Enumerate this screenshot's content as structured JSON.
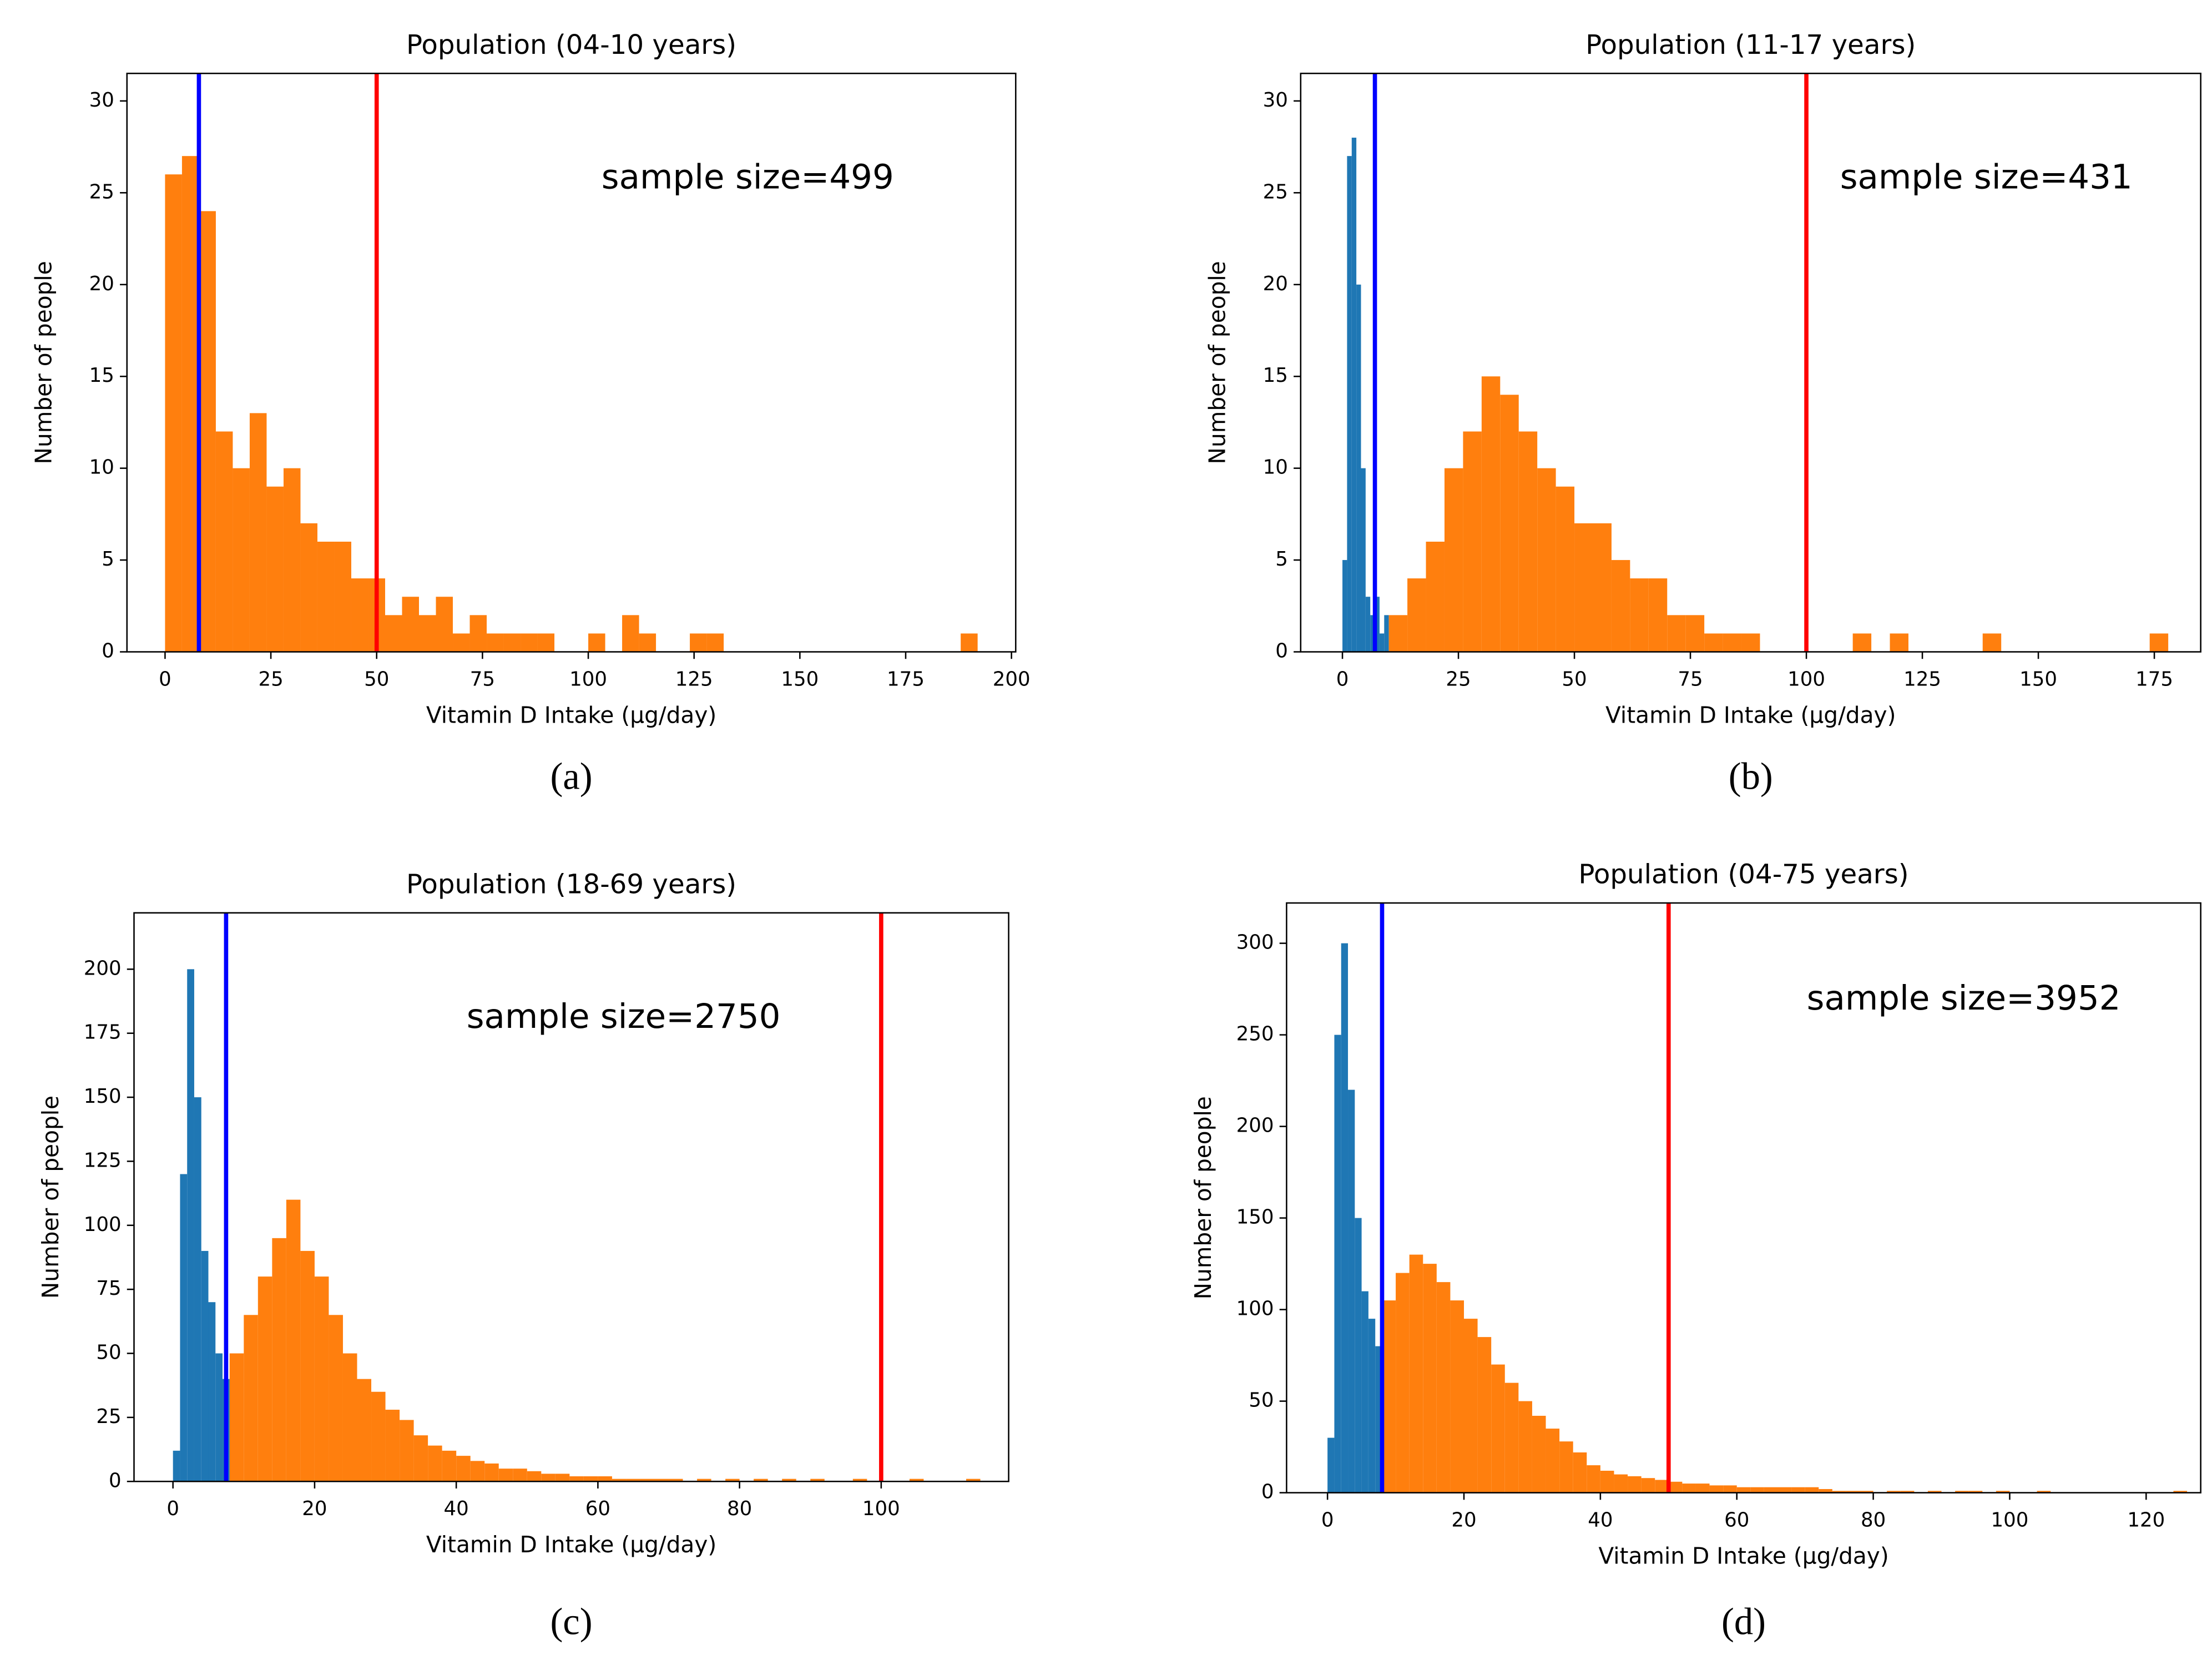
{
  "chart_data": [
    {
      "type": "histogram",
      "title": "Population (04-10 years)",
      "xlabel": "Vitamin D Intake (µg/day)",
      "ylabel": "Number of people",
      "annotation": "sample size=499",
      "panel_label": "(a)",
      "xlim": [
        -9,
        201
      ],
      "ylim": [
        0,
        31.5
      ],
      "xticks": [
        0,
        25,
        50,
        75,
        100,
        125,
        150,
        175,
        200
      ],
      "yticks": [
        0,
        5,
        10,
        15,
        20,
        25,
        30
      ],
      "series": [
        {
          "color": "#ff7f0e",
          "bins": [
            0,
            4,
            8,
            12,
            16,
            20,
            24,
            28,
            32,
            36,
            40,
            44,
            48,
            52,
            56,
            60,
            64,
            68,
            72,
            76,
            80,
            84,
            88,
            92,
            96,
            100,
            104,
            108,
            112,
            116,
            120,
            124,
            128,
            132,
            136,
            140,
            144,
            148,
            152,
            156,
            160,
            164,
            168,
            172,
            176,
            180,
            184,
            188,
            192
          ],
          "values": [
            26,
            27,
            24,
            12,
            10,
            13,
            9,
            10,
            7,
            6,
            6,
            4,
            4,
            2,
            3,
            2,
            3,
            1,
            2,
            1,
            1,
            1,
            1,
            0,
            0,
            1,
            0,
            2,
            1,
            0,
            0,
            1,
            1,
            0,
            0,
            0,
            0,
            0,
            0,
            0,
            0,
            0,
            0,
            0,
            0,
            0,
            0,
            1
          ]
        }
      ],
      "vlines": [
        {
          "x": 8,
          "color": "#0000ff"
        },
        {
          "x": 50,
          "color": "#ff0000"
        }
      ]
    },
    {
      "type": "histogram",
      "title": "Population (11-17 years)",
      "xlabel": "Vitamin D Intake (µg/day)",
      "ylabel": "Number of people",
      "annotation": "sample size=431",
      "panel_label": "(b)",
      "xlim": [
        -9,
        185
      ],
      "ylim": [
        0,
        31.5
      ],
      "xticks": [
        0,
        25,
        50,
        75,
        100,
        125,
        150,
        175
      ],
      "yticks": [
        0,
        5,
        10,
        15,
        20,
        25,
        30
      ],
      "series": [
        {
          "color": "#1f77b4",
          "bins": [
            0,
            1,
            2,
            3,
            4,
            5,
            6,
            7,
            8,
            9,
            10
          ],
          "values": [
            5,
            27,
            28,
            20,
            10,
            3,
            2,
            3,
            1,
            2
          ]
        },
        {
          "color": "#ff7f0e",
          "bins": [
            10,
            14,
            18,
            22,
            26,
            30,
            34,
            38,
            42,
            46,
            50,
            54,
            58,
            62,
            66,
            70,
            74,
            78,
            82,
            86,
            90,
            94,
            98,
            102,
            106,
            110,
            114,
            118,
            122,
            126,
            130,
            134,
            138,
            142,
            146,
            150,
            154,
            158,
            162,
            166,
            170,
            174,
            178
          ],
          "values": [
            2,
            4,
            6,
            10,
            12,
            15,
            14,
            12,
            10,
            9,
            7,
            7,
            5,
            4,
            4,
            2,
            2,
            1,
            1,
            1,
            0,
            0,
            0,
            0,
            0,
            1,
            0,
            1,
            0,
            0,
            0,
            0,
            1,
            0,
            0,
            0,
            0,
            0,
            0,
            0,
            0,
            1
          ]
        }
      ],
      "vlines": [
        {
          "x": 7,
          "color": "#0000ff"
        },
        {
          "x": 100,
          "color": "#ff0000"
        }
      ]
    },
    {
      "type": "histogram",
      "title": "Population (18-69 years)",
      "xlabel": "Vitamin D Intake (µg/day)",
      "ylabel": "Number of people",
      "annotation": "sample size=2750",
      "panel_label": "(c)",
      "xlim": [
        -5.5,
        118
      ],
      "ylim": [
        0,
        222
      ],
      "xticks": [
        0,
        20,
        40,
        60,
        80,
        100
      ],
      "yticks": [
        0,
        25,
        50,
        75,
        100,
        125,
        150,
        175,
        200
      ],
      "series": [
        {
          "color": "#1f77b4",
          "bins": [
            0,
            1,
            2,
            3,
            4,
            5,
            6,
            7,
            8
          ],
          "values": [
            12,
            120,
            200,
            150,
            90,
            70,
            50,
            40
          ]
        },
        {
          "color": "#ff7f0e",
          "bins": [
            8,
            10,
            12,
            14,
            16,
            18,
            20,
            22,
            24,
            26,
            28,
            30,
            32,
            34,
            36,
            38,
            40,
            42,
            44,
            46,
            48,
            50,
            52,
            54,
            56,
            58,
            60,
            62,
            64,
            66,
            68,
            70,
            72,
            74,
            76,
            78,
            80,
            82,
            84,
            86,
            88,
            90,
            92,
            94,
            96,
            98,
            100,
            102,
            104,
            106,
            108,
            110,
            112,
            114
          ],
          "values": [
            50,
            65,
            80,
            95,
            110,
            90,
            80,
            65,
            50,
            40,
            35,
            28,
            24,
            18,
            14,
            12,
            10,
            8,
            7,
            5,
            5,
            4,
            3,
            3,
            2,
            2,
            2,
            1,
            1,
            1,
            1,
            1,
            0,
            1,
            0,
            1,
            0,
            1,
            0,
            1,
            0,
            1,
            0,
            0,
            1,
            0,
            0,
            0,
            1,
            0,
            0,
            0,
            1
          ]
        }
      ],
      "vlines": [
        {
          "x": 7.5,
          "color": "#0000ff"
        },
        {
          "x": 100,
          "color": "#ff0000"
        }
      ]
    },
    {
      "type": "histogram",
      "title": "Population (04-75 years)",
      "xlabel": "Vitamin D Intake (µg/day)",
      "ylabel": "Number of people",
      "annotation": "sample size=3952",
      "panel_label": "(d)",
      "xlim": [
        -6,
        128
      ],
      "ylim": [
        0,
        322
      ],
      "xticks": [
        0,
        20,
        40,
        60,
        80,
        100,
        120
      ],
      "yticks": [
        0,
        50,
        100,
        150,
        200,
        250,
        300
      ],
      "series": [
        {
          "color": "#1f77b4",
          "bins": [
            0,
            1,
            2,
            3,
            4,
            5,
            6,
            7,
            8
          ],
          "values": [
            30,
            250,
            300,
            220,
            150,
            110,
            95,
            80
          ]
        },
        {
          "color": "#ff7f0e",
          "bins": [
            8,
            10,
            12,
            14,
            16,
            18,
            20,
            22,
            24,
            26,
            28,
            30,
            32,
            34,
            36,
            38,
            40,
            42,
            44,
            46,
            48,
            50,
            52,
            54,
            56,
            58,
            60,
            62,
            64,
            66,
            68,
            70,
            72,
            74,
            76,
            78,
            80,
            82,
            84,
            86,
            88,
            90,
            92,
            94,
            96,
            98,
            100,
            102,
            104,
            106,
            108,
            110,
            112,
            114,
            116,
            118,
            120,
            122,
            124,
            126
          ],
          "values": [
            105,
            120,
            130,
            125,
            115,
            105,
            95,
            85,
            70,
            60,
            50,
            42,
            35,
            28,
            22,
            15,
            12,
            10,
            9,
            8,
            7,
            6,
            5,
            5,
            4,
            4,
            3,
            3,
            3,
            3,
            3,
            3,
            2,
            1,
            1,
            1,
            0,
            1,
            1,
            0,
            1,
            0,
            1,
            1,
            0,
            1,
            0,
            0,
            1,
            0,
            0,
            0,
            0,
            0,
            0,
            0,
            0,
            0,
            1
          ]
        }
      ],
      "vlines": [
        {
          "x": 8,
          "color": "#0000ff"
        },
        {
          "x": 50,
          "color": "#ff0000"
        }
      ]
    }
  ]
}
